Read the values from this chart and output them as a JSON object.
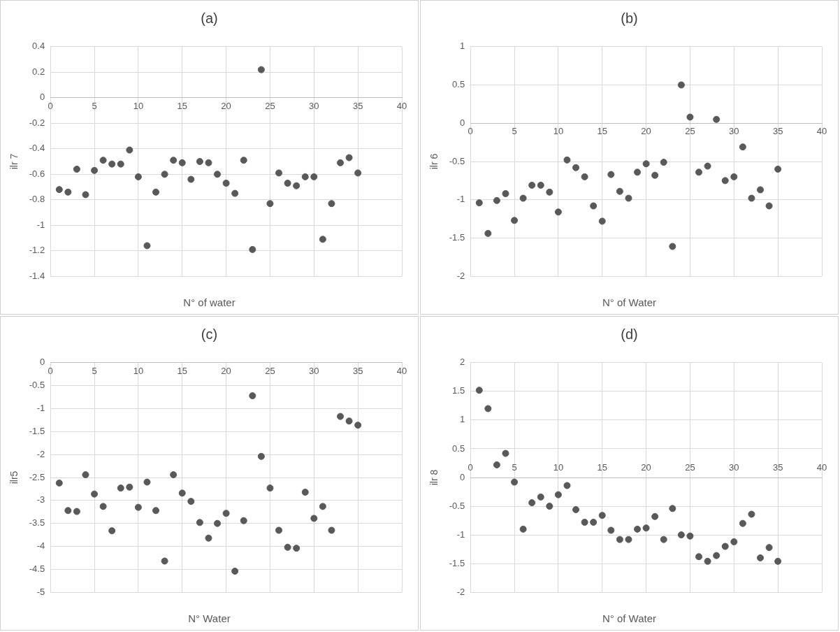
{
  "chart_data": [
    {
      "type": "scatter",
      "title": "(a)",
      "xlabel": "N° of water",
      "ylabel": "ilr 7",
      "color": "#595959",
      "marker": "circle",
      "grid": true,
      "legend": false,
      "x": [
        1,
        2,
        3,
        4,
        5,
        6,
        7,
        8,
        9,
        10,
        11,
        12,
        13,
        14,
        15,
        16,
        17,
        18,
        19,
        20,
        21,
        22,
        23,
        24,
        25,
        26,
        27,
        28,
        29,
        30,
        31,
        32,
        33,
        34,
        35
      ],
      "values": [
        -0.72,
        -0.74,
        -0.56,
        -0.76,
        -0.57,
        -0.49,
        -0.52,
        -0.52,
        -0.41,
        -0.62,
        -1.16,
        -0.74,
        -0.6,
        -0.49,
        -0.51,
        -0.64,
        -0.5,
        -0.51,
        -0.6,
        -0.67,
        -0.75,
        -0.49,
        -1.19,
        0.22,
        -0.83,
        -0.59,
        -0.67,
        -0.69,
        -0.62,
        -0.62,
        -1.11,
        -0.83,
        -0.51,
        -0.47,
        -0.59
      ],
      "xlim": [
        0,
        40
      ],
      "xticks": [
        0,
        5,
        10,
        15,
        20,
        25,
        30,
        35,
        40
      ],
      "ylim": [
        -1.4,
        0.4
      ],
      "yticks": [
        -1.4,
        -1.2,
        -1,
        -0.8,
        -0.6,
        -0.4,
        -0.2,
        0,
        0.2,
        0.4
      ]
    },
    {
      "type": "scatter",
      "title": "(b)",
      "xlabel": "N° of Water",
      "ylabel": "ilr 6",
      "color": "#595959",
      "marker": "circle",
      "grid": true,
      "legend": false,
      "x": [
        1,
        2,
        3,
        4,
        5,
        6,
        7,
        8,
        9,
        10,
        11,
        12,
        13,
        14,
        15,
        16,
        17,
        18,
        19,
        20,
        21,
        22,
        23,
        24,
        25,
        26,
        27,
        28,
        29,
        30,
        31,
        32,
        33,
        34,
        35
      ],
      "values": [
        -1.04,
        -1.44,
        -1.01,
        -0.92,
        -1.27,
        -0.98,
        -0.81,
        -0.81,
        -0.9,
        -1.16,
        -0.48,
        -0.58,
        -0.7,
        -1.08,
        -1.28,
        -0.67,
        -0.89,
        -0.98,
        -0.64,
        -0.53,
        -0.68,
        -0.51,
        -1.61,
        0.5,
        0.08,
        -0.64,
        -0.56,
        0.05,
        -0.75,
        -0.7,
        -0.31,
        -0.98,
        -0.87,
        -1.08,
        -0.6
      ],
      "xlim": [
        0,
        40
      ],
      "xticks": [
        0,
        5,
        10,
        15,
        20,
        25,
        30,
        35,
        40
      ],
      "ylim": [
        -2,
        1
      ],
      "yticks": [
        -2,
        -1.5,
        -1,
        -0.5,
        0,
        0.5,
        1
      ]
    },
    {
      "type": "scatter",
      "title": "(c)",
      "xlabel": "N° Water",
      "ylabel": "ilr5",
      "color": "#595959",
      "marker": "circle",
      "grid": true,
      "legend": false,
      "x": [
        1,
        2,
        3,
        4,
        5,
        6,
        7,
        8,
        9,
        10,
        11,
        12,
        13,
        14,
        15,
        16,
        17,
        18,
        19,
        20,
        21,
        22,
        23,
        24,
        25,
        26,
        27,
        28,
        29,
        30,
        31,
        32,
        33,
        34,
        35
      ],
      "values": [
        -2.62,
        -3.22,
        -3.24,
        -2.44,
        -2.86,
        -3.13,
        -3.66,
        -2.73,
        -2.71,
        -3.15,
        -2.6,
        -3.22,
        -4.32,
        -2.44,
        -2.84,
        -3.02,
        -3.48,
        -3.82,
        -3.5,
        -3.28,
        -4.54,
        -3.44,
        -0.72,
        -2.04,
        -2.73,
        -3.65,
        -4.02,
        -4.04,
        -2.82,
        -3.39,
        -3.13,
        -3.65,
        -1.17,
        -1.27,
        -1.36
      ],
      "xlim": [
        0,
        40
      ],
      "xticks": [
        0,
        5,
        10,
        15,
        20,
        25,
        30,
        35,
        40
      ],
      "ylim": [
        -5,
        0
      ],
      "yticks": [
        -5,
        -4.5,
        -4,
        -3.5,
        -3,
        -2.5,
        -2,
        -1.5,
        -1,
        -0.5,
        0
      ]
    },
    {
      "type": "scatter",
      "title": "(d)",
      "xlabel": "N° of Water",
      "ylabel": "ilr 8",
      "color": "#595959",
      "marker": "circle",
      "grid": true,
      "legend": false,
      "x": [
        1,
        2,
        3,
        4,
        5,
        6,
        7,
        8,
        9,
        10,
        11,
        12,
        13,
        14,
        15,
        16,
        17,
        18,
        19,
        20,
        21,
        22,
        23,
        24,
        25,
        26,
        27,
        28,
        29,
        30,
        31,
        32,
        33,
        34,
        35
      ],
      "values": [
        1.52,
        1.2,
        0.22,
        0.42,
        -0.08,
        -0.9,
        -0.44,
        -0.34,
        -0.5,
        -0.3,
        -0.14,
        -0.56,
        -0.78,
        -0.78,
        -0.66,
        -0.92,
        -1.08,
        -1.08,
        -0.9,
        -0.88,
        -0.68,
        -1.08,
        -0.54,
        -1,
        -1.02,
        -1.38,
        -1.46,
        -1.36,
        -1.2,
        -1.12,
        -0.8,
        -0.64,
        -1.4,
        -1.22,
        -1.46
      ],
      "xlim": [
        0,
        40
      ],
      "xticks": [
        0,
        5,
        10,
        15,
        20,
        25,
        30,
        35,
        40
      ],
      "ylim": [
        -2,
        2
      ],
      "yticks": [
        -2,
        -1.5,
        -1,
        -0.5,
        0,
        0.5,
        1,
        1.5,
        2
      ]
    }
  ]
}
